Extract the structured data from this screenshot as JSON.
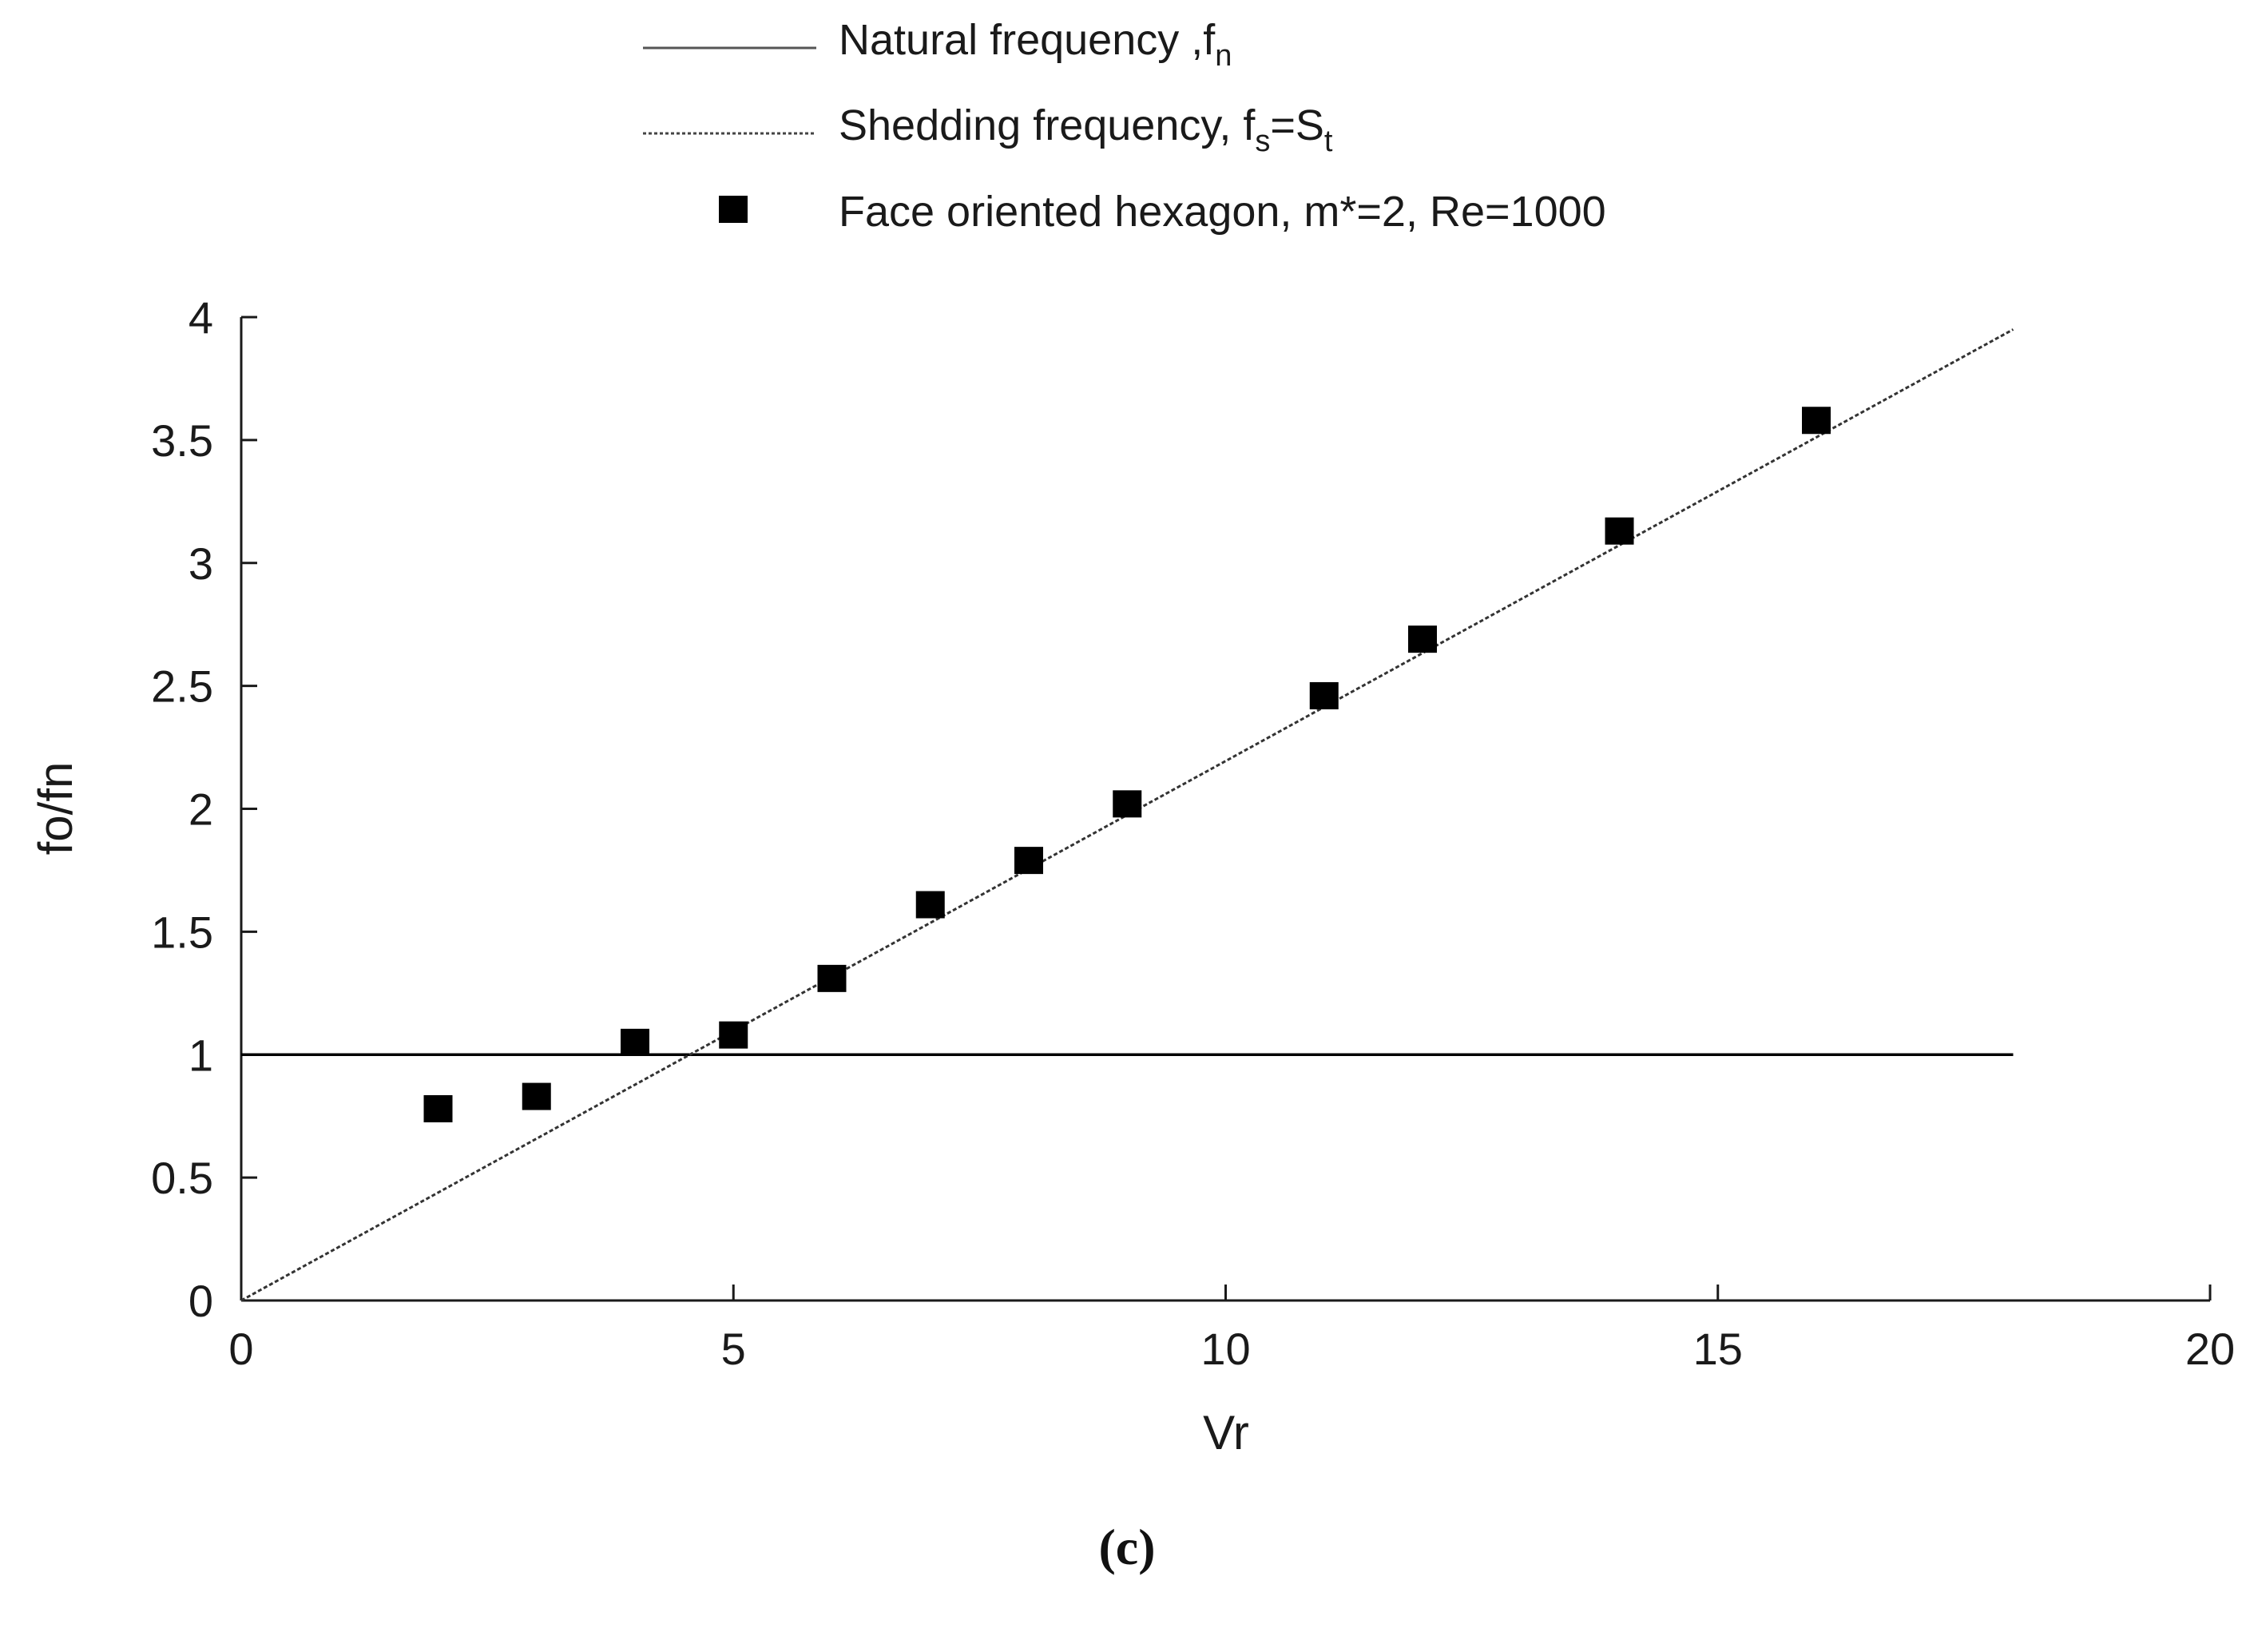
{
  "chart_data": {
    "type": "scatter",
    "title": "",
    "xlabel": "Vr",
    "ylabel": "fo/fn",
    "xlim": [
      0,
      20
    ],
    "ylim": [
      0,
      4
    ],
    "xticks": [
      0,
      5,
      10,
      15,
      20
    ],
    "yticks": [
      0,
      0.5,
      1,
      1.5,
      2,
      2.5,
      3,
      3.5,
      4
    ],
    "xtick_labels": [
      "0",
      "5",
      "10",
      "15",
      "20"
    ],
    "ytick_labels": [
      "0",
      "0.5",
      "1",
      "1.5",
      "2",
      "2.5",
      "3",
      "3.5",
      "4"
    ],
    "grid": false,
    "legend_position": "top",
    "series": [
      {
        "name": "Natural frequency ,f",
        "subscript": "n",
        "kind": "line",
        "style": "solid",
        "x": [
          0,
          18
        ],
        "y": [
          1,
          1
        ]
      },
      {
        "name": "Shedding frequency, f",
        "subscript": "s",
        "name_suffix": "=S",
        "suffix_subscript": "t",
        "kind": "line",
        "style": "dotted",
        "x": [
          0,
          18
        ],
        "y": [
          0,
          3.95
        ]
      },
      {
        "name": "Face oriented hexagon, m*=2, Re=1000",
        "kind": "scatter",
        "marker": "square",
        "x": [
          2,
          3,
          4,
          5,
          6,
          7,
          8,
          9,
          11,
          12,
          14,
          16
        ],
        "y": [
          0.78,
          0.83,
          1.05,
          1.08,
          1.31,
          1.61,
          1.79,
          2.02,
          2.46,
          2.69,
          3.13,
          3.58
        ]
      }
    ]
  },
  "caption": "(c)",
  "colors": {
    "axis": "#1a1a1a",
    "line": "#000000",
    "marker": "#000000",
    "background": "#ffffff"
  }
}
